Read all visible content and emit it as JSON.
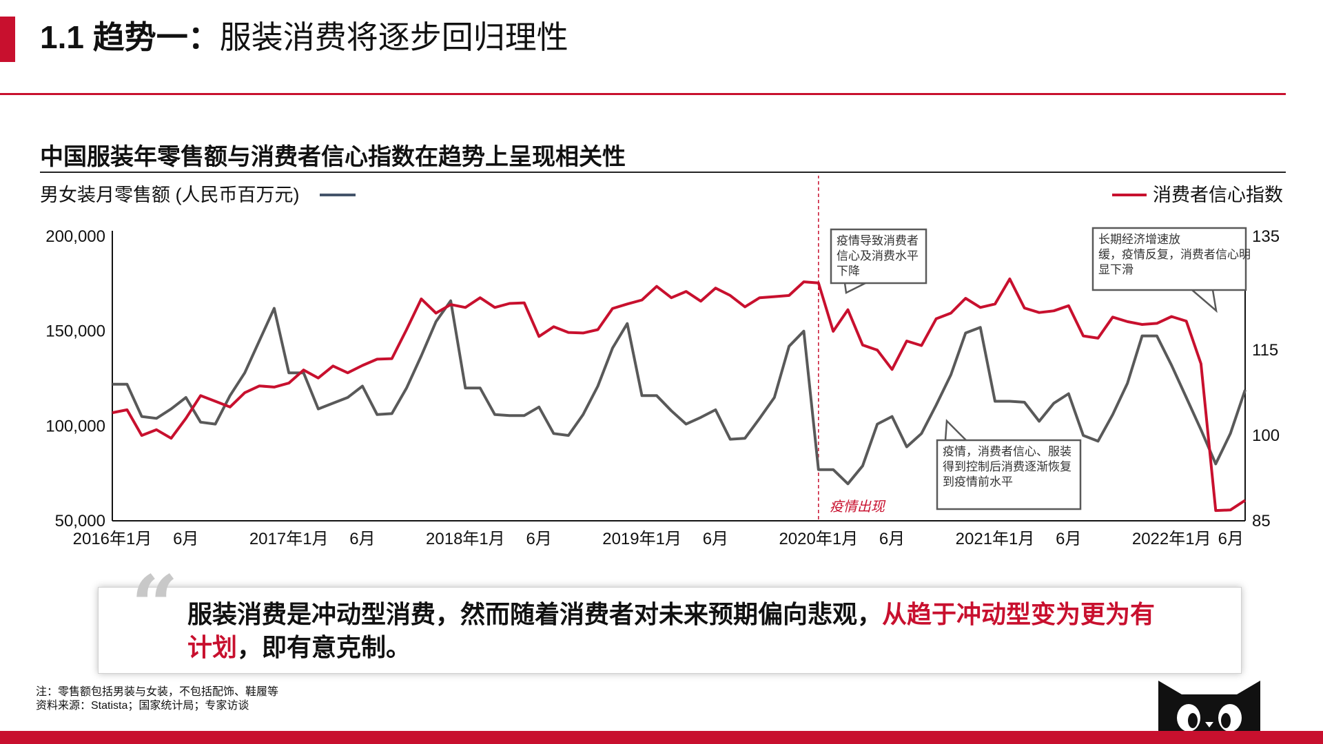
{
  "header": {
    "number": "1.1 趋势一：",
    "title": "服装消费将逐步回归理性"
  },
  "chart_title": "中国服装年零售额与消费者信心指数在趋势上呈现相关性",
  "colors": {
    "accent": "#c8102e",
    "retail_line": "#595959",
    "confidence_line": "#c8102e",
    "legend_left_swatch": "#44546a"
  },
  "chart_data": {
    "type": "line",
    "x": [
      "2016-01",
      "2016-02",
      "2016-03",
      "2016-04",
      "2016-05",
      "2016-06",
      "2016-07",
      "2016-08",
      "2016-09",
      "2016-10",
      "2016-11",
      "2016-12",
      "2017-01",
      "2017-02",
      "2017-03",
      "2017-04",
      "2017-05",
      "2017-06",
      "2017-07",
      "2017-08",
      "2017-09",
      "2017-10",
      "2017-11",
      "2017-12",
      "2018-01",
      "2018-02",
      "2018-03",
      "2018-04",
      "2018-05",
      "2018-06",
      "2018-07",
      "2018-08",
      "2018-09",
      "2018-10",
      "2018-11",
      "2018-12",
      "2019-01",
      "2019-02",
      "2019-03",
      "2019-04",
      "2019-05",
      "2019-06",
      "2019-07",
      "2019-08",
      "2019-09",
      "2019-10",
      "2019-11",
      "2019-12",
      "2020-01",
      "2020-02",
      "2020-03",
      "2020-04",
      "2020-05",
      "2020-06",
      "2020-07",
      "2020-08",
      "2020-09",
      "2020-10",
      "2020-11",
      "2020-12",
      "2021-01",
      "2021-02",
      "2021-03",
      "2021-04",
      "2021-05",
      "2021-06",
      "2021-07",
      "2021-08",
      "2021-09",
      "2021-10",
      "2021-11",
      "2021-12",
      "2022-01",
      "2022-02",
      "2022-03",
      "2022-04",
      "2022-05",
      "2022-06"
    ],
    "x_tick_labels": [
      {
        "x": "2016-01",
        "label": "2016年1月"
      },
      {
        "x": "2016-06",
        "label": "6月"
      },
      {
        "x": "2017-01",
        "label": "2017年1月"
      },
      {
        "x": "2017-06",
        "label": "6月"
      },
      {
        "x": "2018-01",
        "label": "2018年1月"
      },
      {
        "x": "2018-06",
        "label": "6月"
      },
      {
        "x": "2019-01",
        "label": "2019年1月"
      },
      {
        "x": "2019-06",
        "label": "6月"
      },
      {
        "x": "2020-01",
        "label": "2020年1月"
      },
      {
        "x": "2020-06",
        "label": "6月"
      },
      {
        "x": "2021-01",
        "label": "2021年1月"
      },
      {
        "x": "2021-06",
        "label": "6月"
      },
      {
        "x": "2022-01",
        "label": "2022年1月"
      },
      {
        "x": "2022-06",
        "label": "6月"
      }
    ],
    "series": [
      {
        "name": "男女装月零售额 (人民币百万元)",
        "axis": "left",
        "values": [
          122000,
          122000,
          105000,
          104000,
          109000,
          115000,
          102000,
          101000,
          116000,
          128000,
          145000,
          162000,
          128000,
          128000,
          109000,
          112000,
          115000,
          121000,
          106000,
          106500,
          120000,
          137000,
          155000,
          166000,
          120000,
          120000,
          106000,
          105500,
          105500,
          110000,
          96000,
          95000,
          106000,
          121000,
          141000,
          154000,
          116000,
          116000,
          108000,
          101000,
          104500,
          108500,
          93000,
          93500,
          104000,
          115000,
          142000,
          150000,
          77000,
          77000,
          69500,
          79000,
          101000,
          105000,
          89000,
          96000,
          111000,
          127000,
          149000,
          152000,
          113000,
          113000,
          112500,
          102500,
          112000,
          117000,
          95000,
          92000,
          106000,
          122500,
          147500,
          147500,
          132000,
          115000,
          98000,
          80000,
          96000,
          119000
        ]
      },
      {
        "name": "消费者信心指数",
        "axis": "right",
        "values": [
          104,
          104.5,
          100,
          101,
          99.5,
          103,
          107,
          106,
          105,
          107.5,
          108.7,
          108.5,
          109.2,
          111.5,
          110.1,
          112.2,
          111,
          112.3,
          113.4,
          113.5,
          118.6,
          124,
          121.5,
          123,
          122.5,
          124.2,
          122.5,
          123.2,
          123.3,
          117.4,
          119.1,
          118.1,
          118,
          118.6,
          122.3,
          123.1,
          123.8,
          126.2,
          124.2,
          125.3,
          123.6,
          125.9,
          124.6,
          122.6,
          124.2,
          124.4,
          124.6,
          127,
          126.8,
          118.3,
          122.1,
          115.9,
          115,
          111.6,
          116.6,
          115.8,
          120.5,
          121.5,
          124.1,
          122.5,
          123.1,
          127.5,
          122.4,
          121.6,
          121.9,
          122.8,
          117.5,
          117.1,
          120.8,
          120,
          119.5,
          119.7,
          120.9,
          120.1,
          112.6,
          86.8,
          86.9,
          88.6
        ]
      }
    ],
    "y_left": {
      "label": "男女装月零售额 (人民币百万元)",
      "range": [
        50000,
        200000
      ],
      "ticks": [
        "50,000",
        "100,000",
        "150,000",
        "200,000"
      ]
    },
    "y_right": {
      "label": "消费者信心指数",
      "range": [
        85,
        135
      ],
      "ticks": [
        "85",
        "100",
        "115",
        "135"
      ]
    },
    "event_marker": {
      "x": "2020-01",
      "label": "疫情出现"
    },
    "annotations": [
      {
        "text": "疫情导致消费者信心及消费水平下降"
      },
      {
        "text": "长期经济增速放缓，疫情反复，消费者信心明显下滑"
      },
      {
        "text": "疫情，消费者信心、服装得到控制后消费逐渐恢复到疫情前水平"
      }
    ],
    "grid": false
  },
  "quote": {
    "normal": "服装消费是冲动型消费，然而随着消费者对未来预期偏向悲观，",
    "highlight": "从趋于冲动型变为更为有计划",
    "end": "，即有意克制。"
  },
  "footnotes": {
    "note": "注：零售额包括男装与女装，不包括配饰、鞋履等",
    "source": "资料来源：Statista；国家统计局；专家访谈"
  }
}
